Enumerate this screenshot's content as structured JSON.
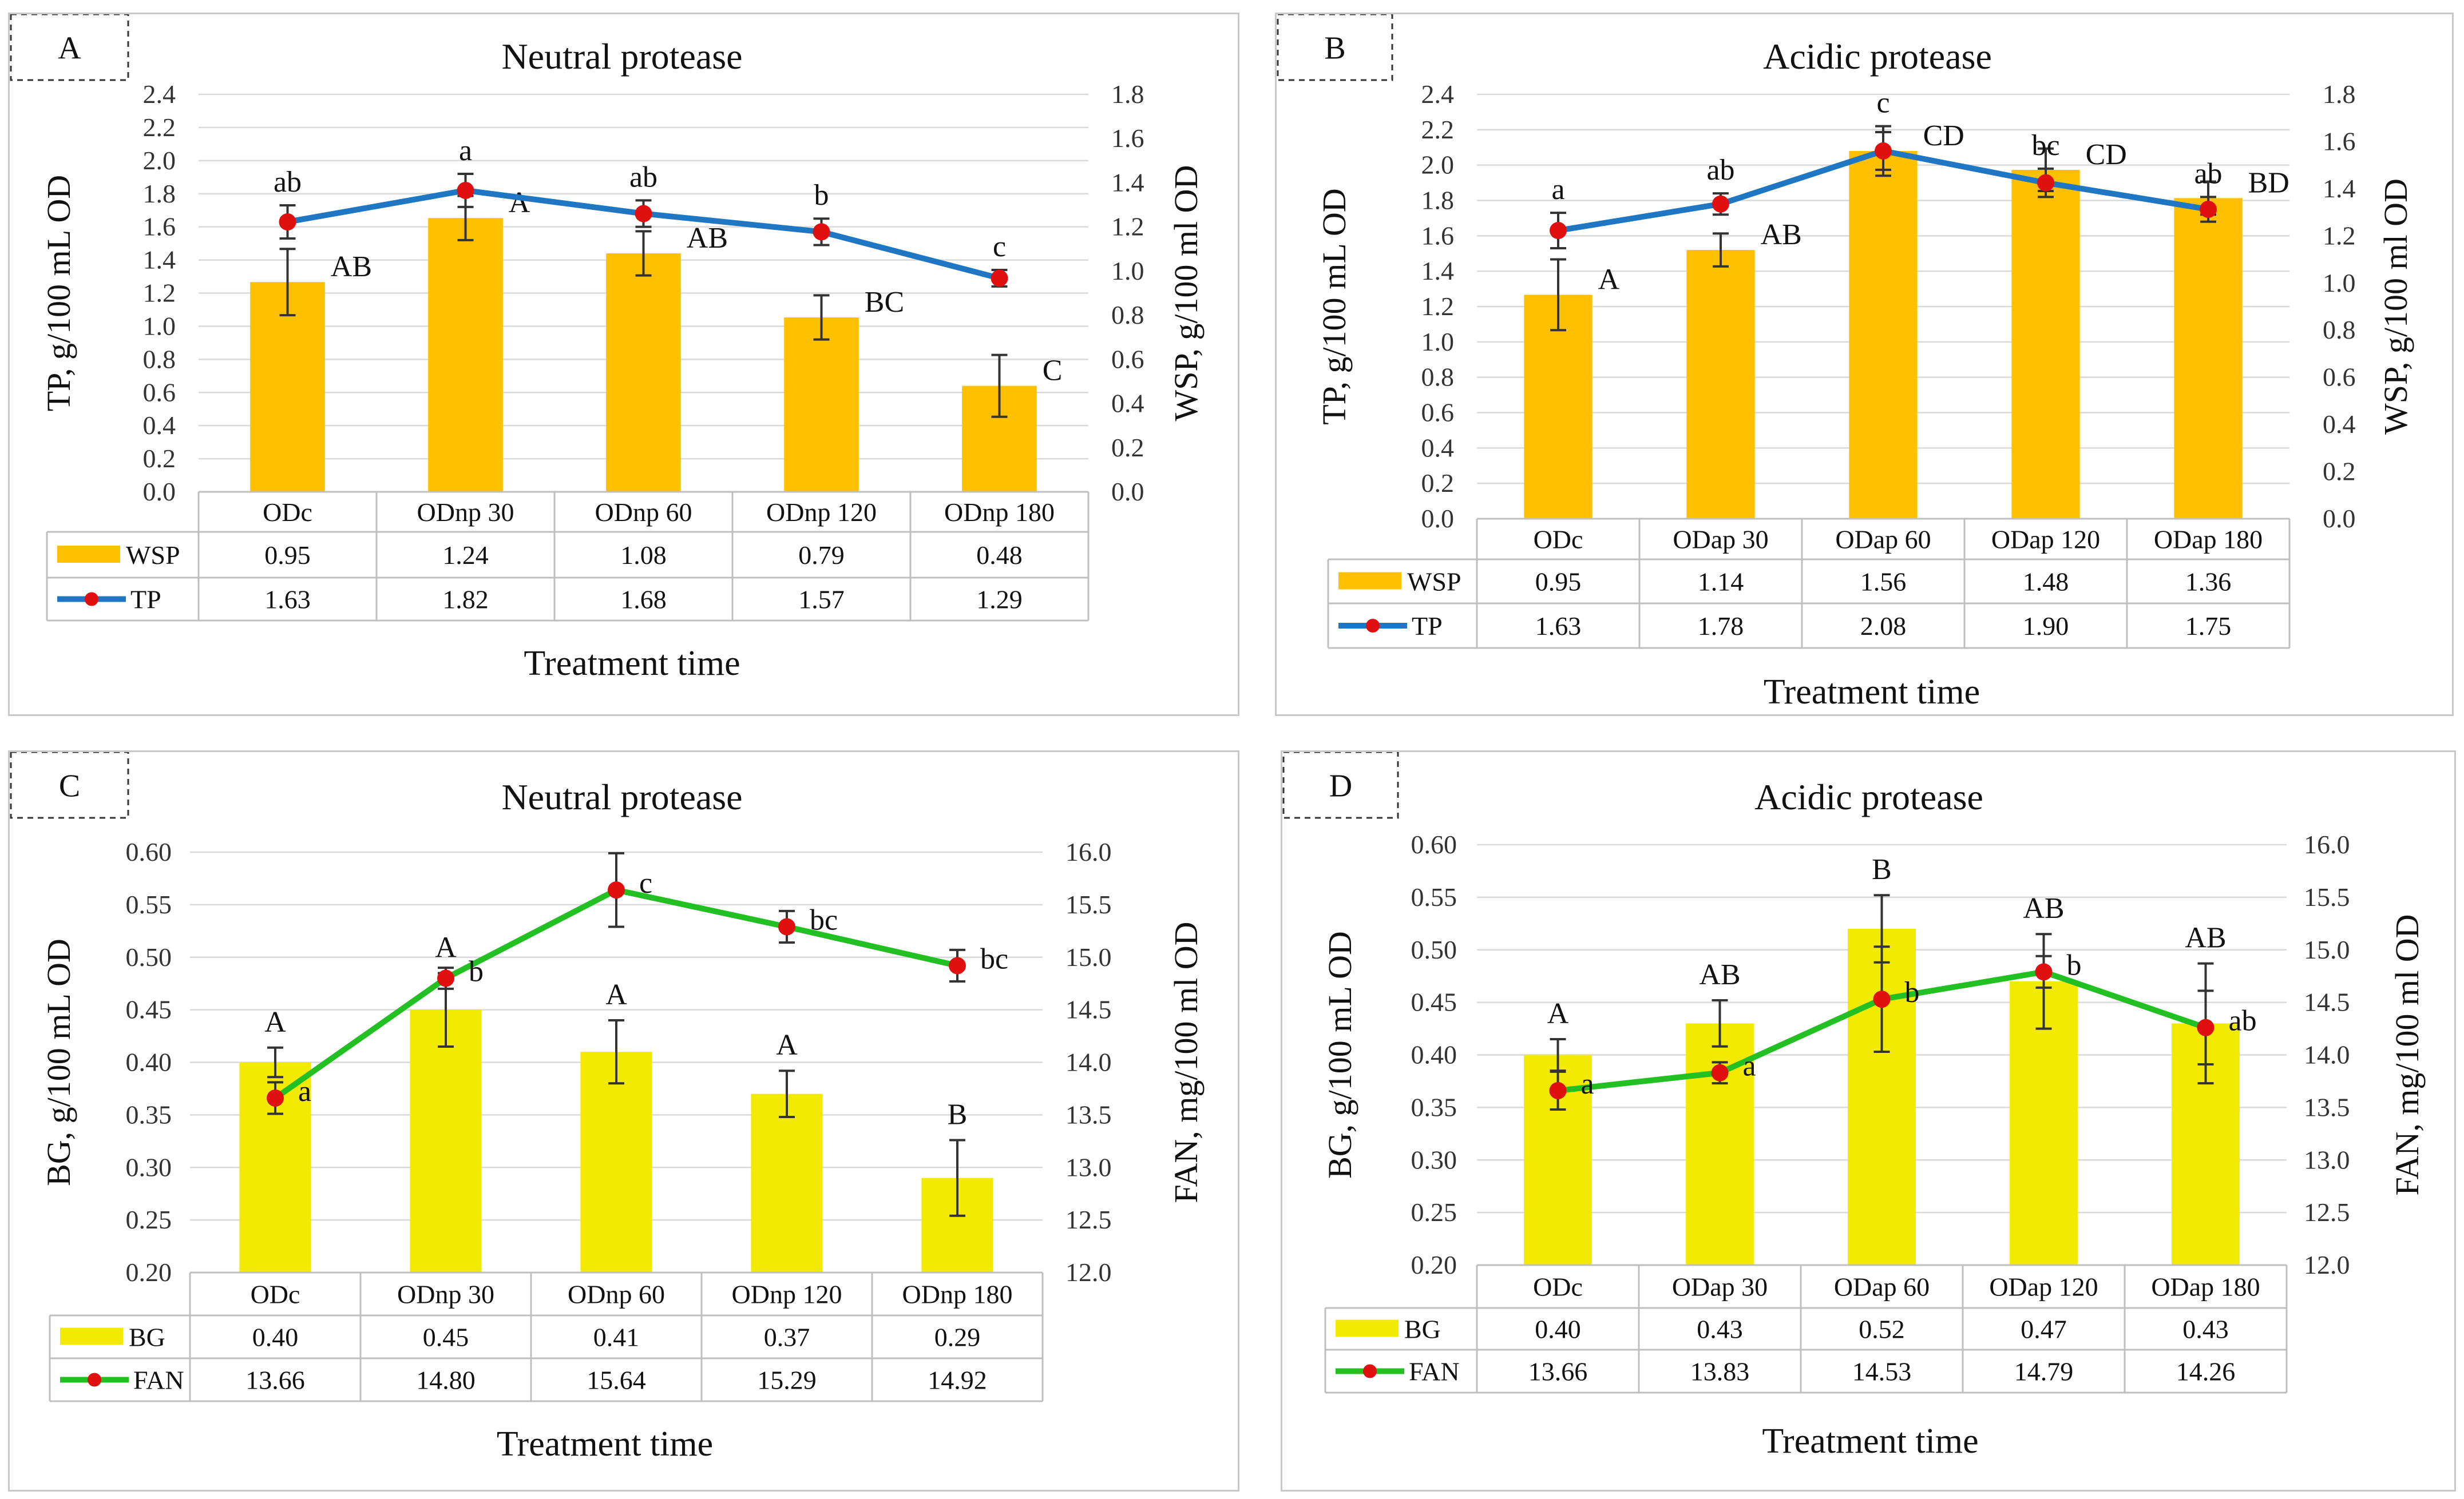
{
  "chart_data": [
    {
      "panel_label": "A",
      "title": "Neutral protease",
      "type": "bar+line",
      "categories": [
        "ODc",
        "ODnp 30",
        "ODnp 60",
        "ODnp 120",
        "ODnp 180"
      ],
      "xlabel": "Treatment time",
      "ylabel_left": "TP, g/100 mL OD",
      "ylabel_right": "WSP, g/100 ml OD",
      "left_ticks": [
        "0.0",
        "0.2",
        "0.4",
        "0.6",
        "0.8",
        "1.0",
        "1.2",
        "1.4",
        "1.6",
        "1.8",
        "2.0",
        "2.2",
        "2.4"
      ],
      "right_ticks": [
        "0.0",
        "0.2",
        "0.4",
        "0.6",
        "0.8",
        "1.0",
        "1.2",
        "1.4",
        "1.6",
        "1.8"
      ],
      "ylim_left": [
        0,
        2.4
      ],
      "ylim_right": [
        0,
        1.8
      ],
      "bar_series": {
        "name": "WSP",
        "axis": "right",
        "color": "#FFC000",
        "values": [
          0.95,
          1.24,
          1.08,
          0.79,
          0.48
        ],
        "table_values": [
          "0.95",
          "1.24",
          "1.08",
          "0.79",
          "0.48"
        ],
        "errors": [
          0.15,
          0.1,
          0.1,
          0.1,
          0.14
        ],
        "letters": [
          "AB",
          "A",
          "AB",
          "BC",
          "C"
        ]
      },
      "line_series": {
        "name": "TP",
        "axis": "left",
        "color": "#1F77C4",
        "marker_color": "#E01010",
        "values": [
          1.63,
          1.82,
          1.68,
          1.57,
          1.29
        ],
        "table_values": [
          "1.63",
          "1.82",
          "1.68",
          "1.57",
          "1.29"
        ],
        "errors": [
          0.1,
          0.1,
          0.08,
          0.08,
          0.05
        ],
        "letters": [
          "ab",
          "a",
          "ab",
          "b",
          "c"
        ]
      }
    },
    {
      "panel_label": "B",
      "title": "Acidic protease",
      "type": "bar+line",
      "categories": [
        "ODc",
        "ODap 30",
        "ODap 60",
        "ODap 120",
        "ODap 180"
      ],
      "xlabel": "Treatment time",
      "ylabel_left": "TP, g/100 mL OD",
      "ylabel_right": "WSP, g/100 ml OD",
      "left_ticks": [
        "0.0",
        "0.2",
        "0.4",
        "0.6",
        "0.8",
        "1.0",
        "1.2",
        "1.4",
        "1.6",
        "1.8",
        "2.0",
        "2.2",
        "2.4"
      ],
      "right_ticks": [
        "0.0",
        "0.2",
        "0.4",
        "0.6",
        "0.8",
        "1.0",
        "1.2",
        "1.4",
        "1.6",
        "1.8"
      ],
      "ylim_left": [
        0,
        2.4
      ],
      "ylim_right": [
        0,
        1.8
      ],
      "bar_series": {
        "name": "WSP",
        "axis": "right",
        "color": "#FFC000",
        "values": [
          0.95,
          1.14,
          1.56,
          1.48,
          1.36
        ],
        "table_values": [
          "0.95",
          "1.14",
          "1.56",
          "1.48",
          "1.36"
        ],
        "errors": [
          0.15,
          0.07,
          0.08,
          0.09,
          0.07
        ],
        "letters": [
          "A",
          "AB",
          "CD",
          "CD",
          "BD"
        ]
      },
      "line_series": {
        "name": "TP",
        "axis": "left",
        "color": "#1F77C4",
        "marker_color": "#E01010",
        "values": [
          1.63,
          1.78,
          2.08,
          1.9,
          1.75
        ],
        "table_values": [
          "1.63",
          "1.78",
          "2.08",
          "1.90",
          "1.75"
        ],
        "errors": [
          0.1,
          0.06,
          0.14,
          0.08,
          0.07
        ],
        "letters": [
          "a",
          "ab",
          "c",
          "bc",
          "ab"
        ]
      }
    },
    {
      "panel_label": "C",
      "title": "Neutral protease",
      "type": "bar+line",
      "categories": [
        "ODc",
        "ODnp 30",
        "ODnp 60",
        "ODnp 120",
        "ODnp 180"
      ],
      "xlabel": "Treatment time",
      "ylabel_left": "BG, g/100 mL OD",
      "ylabel_right": "FAN, mg/100 ml OD",
      "left_ticks": [
        "0.20",
        "0.25",
        "0.30",
        "0.35",
        "0.40",
        "0.45",
        "0.50",
        "0.55",
        "0.60"
      ],
      "right_ticks": [
        "12.0",
        "12.5",
        "13.0",
        "13.5",
        "14.0",
        "14.5",
        "15.0",
        "15.5",
        "16.0"
      ],
      "ylim_left": [
        0.2,
        0.6
      ],
      "ylim_right": [
        12.0,
        16.0
      ],
      "bar_series": {
        "name": "BG",
        "axis": "left",
        "color": "#F2EA00",
        "values": [
          0.4,
          0.45,
          0.41,
          0.37,
          0.29
        ],
        "table_values": [
          "0.40",
          "0.45",
          "0.41",
          "0.37",
          "0.29"
        ],
        "errors": [
          0.014,
          0.035,
          0.03,
          0.022,
          0.036
        ],
        "letters": [
          "A",
          "A",
          "A",
          "A",
          "B"
        ]
      },
      "line_series": {
        "name": "FAN",
        "axis": "right",
        "color": "#22C022",
        "marker_color": "#E01010",
        "values": [
          13.66,
          14.8,
          15.64,
          15.29,
          14.92
        ],
        "table_values": [
          "13.66",
          "14.80",
          "15.64",
          "15.29",
          "14.92"
        ],
        "errors": [
          0.15,
          0.1,
          0.35,
          0.15,
          0.15
        ],
        "letters": [
          "a",
          "b",
          "c",
          "bc",
          "bc"
        ]
      }
    },
    {
      "panel_label": "D",
      "title": "Acidic protease",
      "type": "bar+line",
      "categories": [
        "ODc",
        "ODap 30",
        "ODap 60",
        "ODap 120",
        "ODap 180"
      ],
      "xlabel": "Treatment time",
      "ylabel_left": "BG, g/100 mL OD",
      "ylabel_right": "FAN, mg/100 ml OD",
      "left_ticks": [
        "0.20",
        "0.25",
        "0.30",
        "0.35",
        "0.40",
        "0.45",
        "0.50",
        "0.55",
        "0.60"
      ],
      "right_ticks": [
        "12.0",
        "12.5",
        "13.0",
        "13.5",
        "14.0",
        "14.5",
        "15.0",
        "15.5",
        "16.0"
      ],
      "ylim_left": [
        0.2,
        0.6
      ],
      "ylim_right": [
        12.0,
        16.0
      ],
      "bar_series": {
        "name": "BG",
        "axis": "left",
        "color": "#F2EA00",
        "values": [
          0.4,
          0.43,
          0.52,
          0.47,
          0.43
        ],
        "table_values": [
          "0.40",
          "0.43",
          "0.52",
          "0.47",
          "0.43"
        ],
        "errors": [
          0.015,
          0.022,
          0.032,
          0.045,
          0.057
        ],
        "letters": [
          "A",
          "AB",
          "B",
          "AB",
          "AB"
        ]
      },
      "line_series": {
        "name": "FAN",
        "axis": "right",
        "color": "#22C022",
        "marker_color": "#E01010",
        "values": [
          13.66,
          13.83,
          14.53,
          14.79,
          14.26
        ],
        "table_values": [
          "13.66",
          "13.83",
          "14.53",
          "14.79",
          "14.26"
        ],
        "errors": [
          0.18,
          0.1,
          0.5,
          0.15,
          0.35
        ],
        "letters": [
          "a",
          "a",
          "b",
          "b",
          "ab"
        ]
      }
    }
  ]
}
